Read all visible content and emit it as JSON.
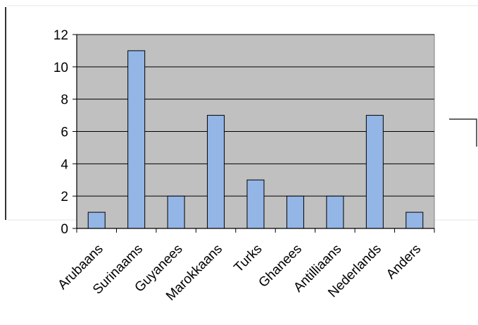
{
  "chart_data": {
    "type": "bar",
    "categories": [
      "Arubaans",
      "Surinaams",
      "Guyanees",
      "Marokkaans",
      "Turks",
      "Ghanees",
      "Antilliaans",
      "Nederlands",
      "Anders"
    ],
    "values": [
      1,
      11,
      2,
      7,
      3,
      2,
      2,
      7,
      1
    ],
    "ylim": [
      0,
      12
    ],
    "yticks": [
      0,
      2,
      4,
      6,
      8,
      10,
      12
    ],
    "grid": true,
    "legend": "none",
    "colors": {
      "bar_fill": "#94b6e6",
      "bar_stroke": "#000000",
      "plot_background": "#c0c0c0",
      "gridline": "#000000"
    }
  }
}
